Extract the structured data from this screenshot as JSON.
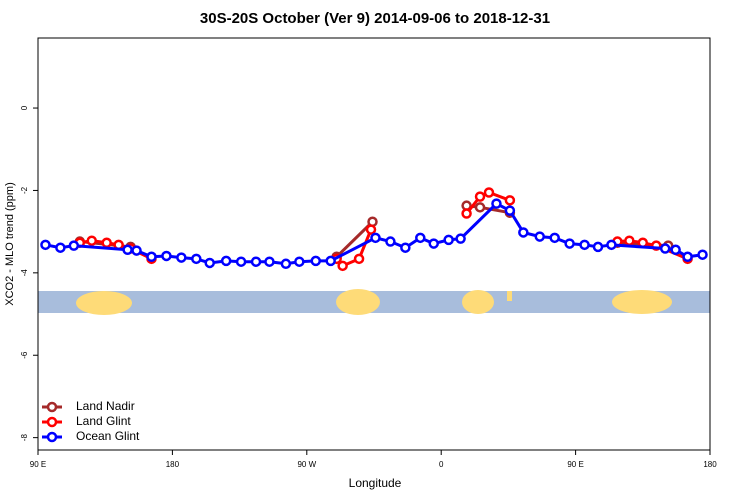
{
  "chart_data": {
    "type": "line",
    "title": "30S-20S October (Ver 9)   2014-09-06 to 2018-12-31",
    "xlabel": "Longitude",
    "ylabel": "XCO2 - MLO trend (ppm)",
    "xlim": [
      90,
      540
    ],
    "ylim": [
      -8.3,
      1.7
    ],
    "xticks": [
      {
        "value": 90,
        "label": "90 E"
      },
      180,
      {
        "value": 270,
        "label": "90 W"
      },
      {
        "value": 360,
        "label": "0"
      },
      {
        "value": 450,
        "label": "90 E"
      },
      {
        "value": 540,
        "label": "180"
      }
    ],
    "yticks": [
      0,
      -2,
      -4,
      -6,
      -8
    ],
    "legend": "bottom-left",
    "series": [
      {
        "name": "Land Nadir",
        "color": "#a52a2a",
        "x": [
          118,
          152,
          null,
          290,
          314,
          null,
          377,
          386,
          406,
          null,
          478,
          512
        ],
        "values": [
          -3.24,
          -3.37,
          null,
          -3.61,
          -2.76,
          null,
          -2.37,
          -2.41,
          -2.54,
          null,
          -3.27,
          -3.34
        ]
      },
      {
        "name": "Land Glint",
        "color": "#ff0000",
        "x": [
          118,
          126,
          136,
          144,
          152,
          166,
          null,
          290,
          294,
          305,
          313,
          null,
          377,
          386,
          392,
          406,
          null,
          478,
          486,
          495,
          504,
          525
        ],
        "values": [
          -3.27,
          -3.22,
          -3.27,
          -3.32,
          -3.41,
          -3.66,
          null,
          -3.66,
          -3.83,
          -3.66,
          -2.95,
          null,
          -2.56,
          -2.15,
          -2.05,
          -2.24,
          null,
          -3.24,
          -3.22,
          -3.27,
          -3.34,
          -3.66
        ]
      },
      {
        "name": "Ocean Glint",
        "color": "#0000ff",
        "x": [
          95,
          105,
          114,
          150,
          156,
          166,
          176,
          186,
          196,
          205,
          216,
          226,
          236,
          245,
          256,
          265,
          276,
          286,
          316,
          326,
          336,
          346,
          355,
          365,
          373,
          397,
          406,
          415,
          426,
          436,
          446,
          456,
          465,
          474,
          510,
          517,
          525,
          535
        ],
        "values": [
          -3.32,
          -3.39,
          -3.34,
          -3.44,
          -3.46,
          -3.61,
          -3.59,
          -3.63,
          -3.66,
          -3.76,
          -3.71,
          -3.73,
          -3.73,
          -3.73,
          -3.78,
          -3.73,
          -3.71,
          -3.71,
          -3.15,
          -3.24,
          -3.39,
          -3.15,
          -3.29,
          -3.2,
          -3.17,
          -2.32,
          -2.49,
          -3.02,
          -3.12,
          -3.15,
          -3.29,
          -3.32,
          -3.37,
          -3.32,
          -3.41,
          -3.44,
          -3.61,
          -3.56
        ]
      }
    ]
  }
}
